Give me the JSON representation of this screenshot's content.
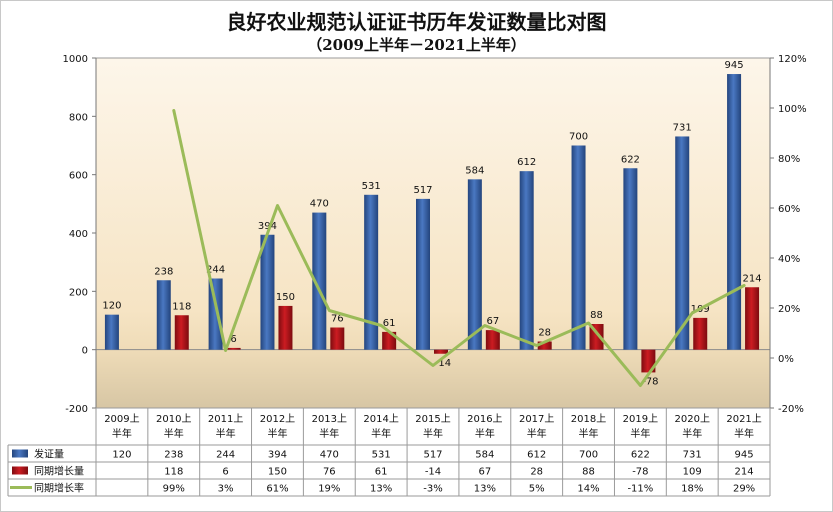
{
  "chart_data": {
    "type": "bar",
    "title": "良好农业规范认证证书历年发证数量比对图",
    "subtitle": "（2009上半年－2021上半年）",
    "categories": [
      "2009上半年",
      "2010上半年",
      "2011上半年",
      "2012上半年",
      "2013上半年",
      "2014上半年",
      "2015上半年",
      "2016上半年",
      "2017上半年",
      "2018上半年",
      "2019上半年",
      "2020上半年",
      "2021上半年"
    ],
    "category_lines": [
      [
        "2009上",
        "半年"
      ],
      [
        "2010上",
        "半年"
      ],
      [
        "2011上",
        "半年"
      ],
      [
        "2012上",
        "半年"
      ],
      [
        "2013上",
        "半年"
      ],
      [
        "2014上",
        "半年"
      ],
      [
        "2015上",
        "半年"
      ],
      [
        "2016上",
        "半年"
      ],
      [
        "2017上",
        "半年"
      ],
      [
        "2018上",
        "半年"
      ],
      [
        "2019上",
        "半年"
      ],
      [
        "2020上",
        "半年"
      ],
      [
        "2021上",
        "半年"
      ]
    ],
    "series": [
      {
        "name": "发证量",
        "type": "bar",
        "axis": "left",
        "color": "#3b63a8",
        "values": [
          120,
          238,
          244,
          394,
          470,
          531,
          517,
          584,
          612,
          700,
          622,
          731,
          945
        ],
        "labels": [
          "120",
          "238",
          "244",
          "394",
          "470",
          "531",
          "517",
          "584",
          "612",
          "700",
          "622",
          "731",
          "945"
        ]
      },
      {
        "name": "同期增长量",
        "type": "bar",
        "axis": "left",
        "color": "#b3151a",
        "values": [
          null,
          118,
          6,
          150,
          76,
          61,
          -14,
          67,
          28,
          88,
          -78,
          109,
          214
        ],
        "labels": [
          "",
          "118",
          "6",
          "150",
          "76",
          "61",
          "-14",
          "67",
          "28",
          "88",
          "-78",
          "109",
          "214"
        ]
      },
      {
        "name": "同期增长率",
        "type": "line",
        "axis": "right",
        "color": "#9bbb59",
        "values": [
          null,
          99,
          3,
          61,
          19,
          13,
          -3,
          13,
          5,
          14,
          -11,
          18,
          29
        ],
        "labels": [
          "",
          "99%",
          "3%",
          "61%",
          "19%",
          "13%",
          "-3%",
          "13%",
          "5%",
          "14%",
          "-11%",
          "18%",
          "29%"
        ]
      }
    ],
    "left_axis": {
      "min": -200,
      "max": 1000,
      "ticks": [
        "-200",
        "0",
        "200",
        "400",
        "600",
        "800",
        "1000"
      ],
      "tick_values": [
        -200,
        0,
        200,
        400,
        600,
        800,
        1000
      ]
    },
    "right_axis": {
      "min": -20,
      "max": 120,
      "ticks": [
        "-20%",
        "0%",
        "20%",
        "40%",
        "60%",
        "80%",
        "100%",
        "120%"
      ],
      "tick_values": [
        -20,
        0,
        20,
        40,
        60,
        80,
        100,
        120
      ]
    },
    "legend": "data-table-below",
    "grid": false
  }
}
